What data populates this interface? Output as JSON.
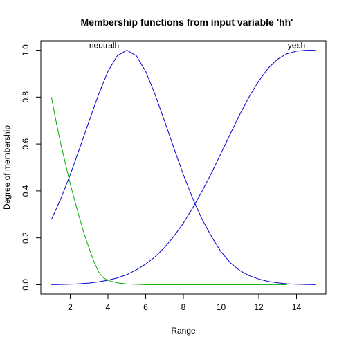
{
  "chart_data": {
    "type": "line",
    "title": "Membership functions from input variable 'hh'",
    "xlabel": "Range",
    "ylabel": "Degree of membership",
    "xlim": [
      0.44,
      15.56
    ],
    "ylim": [
      -0.04,
      1.04
    ],
    "x_ticks": [
      2,
      4,
      6,
      8,
      10,
      12,
      14
    ],
    "y_ticks": [
      0.0,
      0.2,
      0.4,
      0.6,
      0.8,
      1.0
    ],
    "grid": false,
    "series": [
      {
        "name": "neutralh",
        "color": "#0000cc",
        "x": [
          1,
          1.5,
          2,
          2.5,
          3,
          3.5,
          4,
          4.5,
          5,
          5.5,
          6,
          6.5,
          7,
          7.5,
          8,
          8.5,
          9,
          9.5,
          10,
          10.5,
          11,
          11.5,
          12,
          12.5,
          13,
          13.5,
          14,
          14.5,
          15
        ],
        "y": [
          0.278,
          0.367,
          0.469,
          0.582,
          0.698,
          0.811,
          0.91,
          0.977,
          1.0,
          0.977,
          0.91,
          0.811,
          0.698,
          0.582,
          0.469,
          0.367,
          0.278,
          0.204,
          0.14,
          0.093,
          0.06,
          0.038,
          0.024,
          0.014,
          0.008,
          0.004,
          0.002,
          0.001,
          0.0
        ]
      },
      {
        "name": "yesh",
        "color": "#0000cc",
        "x": [
          1,
          1.5,
          2,
          2.5,
          3,
          3.5,
          4,
          4.5,
          5,
          5.5,
          6,
          6.5,
          7,
          7.5,
          8,
          8.5,
          9,
          9.5,
          10,
          10.5,
          11,
          11.5,
          12,
          12.5,
          13,
          13.5,
          14,
          14.5,
          15
        ],
        "y": [
          0.0,
          0.001,
          0.002,
          0.004,
          0.007,
          0.012,
          0.019,
          0.029,
          0.043,
          0.063,
          0.088,
          0.119,
          0.159,
          0.207,
          0.263,
          0.328,
          0.4,
          0.478,
          0.561,
          0.645,
          0.727,
          0.803,
          0.869,
          0.923,
          0.962,
          0.985,
          0.996,
          1.0,
          1.0
        ]
      },
      {
        "name": "",
        "color": "#00aa00",
        "x": [
          1,
          1.25,
          1.5,
          1.75,
          2,
          2.25,
          2.5,
          2.75,
          3,
          3.25,
          3.5,
          3.75,
          4,
          4.5,
          5,
          6,
          7,
          8,
          9,
          10,
          11,
          12,
          13,
          13.5
        ],
        "y": [
          0.8,
          0.695,
          0.6,
          0.515,
          0.43,
          0.355,
          0.283,
          0.215,
          0.155,
          0.1,
          0.055,
          0.03,
          0.018,
          0.008,
          0.003,
          0.0,
          0.0,
          0.0,
          0.0,
          0.0,
          0.0,
          0.0,
          0.0,
          0.0
        ]
      }
    ],
    "annotations": [
      {
        "text": "neutralh",
        "x": 3.8,
        "y": 1.0
      },
      {
        "text": "yesh",
        "x": 14.0,
        "y": 1.0
      }
    ]
  }
}
